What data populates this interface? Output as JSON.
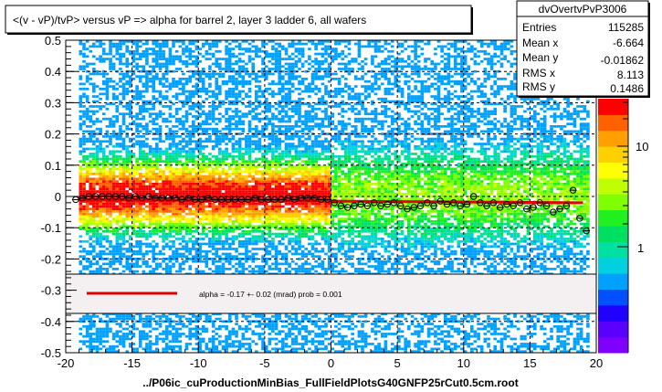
{
  "title": "<(v - vP)/tvP> versus   vP => alpha for barrel 2, layer 3 ladder 6, all wafers",
  "footer": "../P06ic_cuProductionMinBias_FullFieldPlotsG40GNFP25rCut0.5cm.root",
  "stats": {
    "name": "dvOvertvPvP3006",
    "rows": [
      {
        "label": "Entries",
        "value": "115285"
      },
      {
        "label": "Mean x",
        "value": "-6.664"
      },
      {
        "label": "Mean y",
        "value": "-0.01862"
      },
      {
        "label": "RMS x",
        "value": "8.113"
      },
      {
        "label": "RMS y",
        "value": "0.1486"
      }
    ]
  },
  "fit_legend": {
    "text": "alpha =    -0.17 +-  0.02 (mrad) prob = 0.001",
    "line_color": "#e00000"
  },
  "colorbar": {
    "tick_labels": [
      "1",
      "10"
    ],
    "colors": [
      "#7f00ff",
      "#5a00ff",
      "#2000ff",
      "#0050ff",
      "#00a0ff",
      "#00d0e0",
      "#00e0a0",
      "#00e060",
      "#20f020",
      "#80ff00",
      "#c0ff00",
      "#ffff00",
      "#ffd000",
      "#ffa000",
      "#ff6000",
      "#ff0000"
    ]
  },
  "chart_data": {
    "type": "heatmap",
    "xlim": [
      -20,
      20
    ],
    "ylim": [
      -0.5,
      0.5
    ],
    "x_ticks": [
      -20,
      -15,
      -10,
      -5,
      0,
      5,
      10,
      15,
      20
    ],
    "y_ticks": [
      -0.5,
      -0.4,
      -0.3,
      -0.2,
      -0.1,
      0,
      0.1,
      0.2,
      0.3,
      0.4,
      0.5
    ],
    "x_tick_labels": [
      "-20",
      "-15",
      "-10",
      "-5",
      "0",
      "5",
      "10",
      "15",
      "20"
    ],
    "y_tick_labels": [
      "-0.5",
      "-0.4",
      "-0.3",
      "-0.2",
      "-0.1",
      "0",
      "0.1",
      "0.2",
      "0.3",
      "0.4",
      "0.5"
    ],
    "grid": true,
    "fit_line": {
      "x": [
        -19,
        19
      ],
      "y": [
        -0.01,
        -0.02
      ],
      "color": "#e00000"
    },
    "profile_points": [
      {
        "x": -19.25,
        "y": -0.01
      },
      {
        "x": -18.75,
        "y": -0.005
      },
      {
        "x": -18.25,
        "y": 0.0
      },
      {
        "x": -17.75,
        "y": 0.0
      },
      {
        "x": -17.25,
        "y": 0.0
      },
      {
        "x": -16.75,
        "y": 0.0
      },
      {
        "x": -16.25,
        "y": 0.0
      },
      {
        "x": -15.75,
        "y": 0.0
      },
      {
        "x": -15.25,
        "y": -0.005
      },
      {
        "x": -14.75,
        "y": 0.0
      },
      {
        "x": -14.25,
        "y": -0.005
      },
      {
        "x": -13.75,
        "y": 0.0
      },
      {
        "x": -13.25,
        "y": -0.005
      },
      {
        "x": -12.75,
        "y": -0.005
      },
      {
        "x": -12.25,
        "y": -0.005
      },
      {
        "x": -11.75,
        "y": -0.005
      },
      {
        "x": -11.25,
        "y": -0.01
      },
      {
        "x": -10.75,
        "y": -0.005
      },
      {
        "x": -10.25,
        "y": -0.01
      },
      {
        "x": -9.75,
        "y": -0.01
      },
      {
        "x": -9.25,
        "y": -0.005
      },
      {
        "x": -8.75,
        "y": -0.01
      },
      {
        "x": -8.25,
        "y": -0.01
      },
      {
        "x": -7.75,
        "y": -0.01
      },
      {
        "x": -7.25,
        "y": -0.01
      },
      {
        "x": -6.75,
        "y": -0.01
      },
      {
        "x": -6.25,
        "y": -0.01
      },
      {
        "x": -5.75,
        "y": -0.005
      },
      {
        "x": -5.25,
        "y": -0.01
      },
      {
        "x": -4.75,
        "y": -0.01
      },
      {
        "x": -4.25,
        "y": -0.01
      },
      {
        "x": -3.75,
        "y": -0.01
      },
      {
        "x": -3.25,
        "y": -0.005
      },
      {
        "x": -2.75,
        "y": -0.01
      },
      {
        "x": -2.25,
        "y": -0.005
      },
      {
        "x": -1.75,
        "y": -0.005
      },
      {
        "x": -1.25,
        "y": -0.005
      },
      {
        "x": -0.75,
        "y": -0.01
      },
      {
        "x": -0.25,
        "y": -0.01
      },
      {
        "x": 0.25,
        "y": -0.02
      },
      {
        "x": 0.75,
        "y": -0.03
      },
      {
        "x": 1.25,
        "y": -0.035
      },
      {
        "x": 1.75,
        "y": -0.03
      },
      {
        "x": 2.25,
        "y": -0.025
      },
      {
        "x": 2.75,
        "y": -0.03
      },
      {
        "x": 3.25,
        "y": -0.02
      },
      {
        "x": 3.75,
        "y": -0.03
      },
      {
        "x": 4.25,
        "y": -0.025
      },
      {
        "x": 4.75,
        "y": -0.02
      },
      {
        "x": 5.25,
        "y": -0.03
      },
      {
        "x": 5.75,
        "y": -0.04
      },
      {
        "x": 6.25,
        "y": -0.035
      },
      {
        "x": 6.75,
        "y": -0.03
      },
      {
        "x": 7.25,
        "y": -0.02
      },
      {
        "x": 7.75,
        "y": -0.03
      },
      {
        "x": 8.25,
        "y": -0.015
      },
      {
        "x": 8.75,
        "y": -0.025
      },
      {
        "x": 9.25,
        "y": -0.02
      },
      {
        "x": 9.75,
        "y": -0.03
      },
      {
        "x": 10.25,
        "y": -0.025
      },
      {
        "x": 10.75,
        "y": 0.0
      },
      {
        "x": 11.25,
        "y": -0.02
      },
      {
        "x": 11.75,
        "y": -0.03
      },
      {
        "x": 12.25,
        "y": -0.02
      },
      {
        "x": 12.75,
        "y": -0.035
      },
      {
        "x": 13.25,
        "y": -0.025
      },
      {
        "x": 13.75,
        "y": -0.03
      },
      {
        "x": 14.25,
        "y": -0.02
      },
      {
        "x": 14.75,
        "y": -0.04
      },
      {
        "x": 15.25,
        "y": -0.035
      },
      {
        "x": 15.75,
        "y": -0.02
      },
      {
        "x": 16.25,
        "y": -0.03
      },
      {
        "x": 16.75,
        "y": -0.05
      },
      {
        "x": 17.25,
        "y": -0.04
      },
      {
        "x": 17.75,
        "y": -0.03
      },
      {
        "x": 18.25,
        "y": 0.02
      },
      {
        "x": 18.75,
        "y": -0.07
      },
      {
        "x": 19.25,
        "y": -0.11
      }
    ]
  }
}
